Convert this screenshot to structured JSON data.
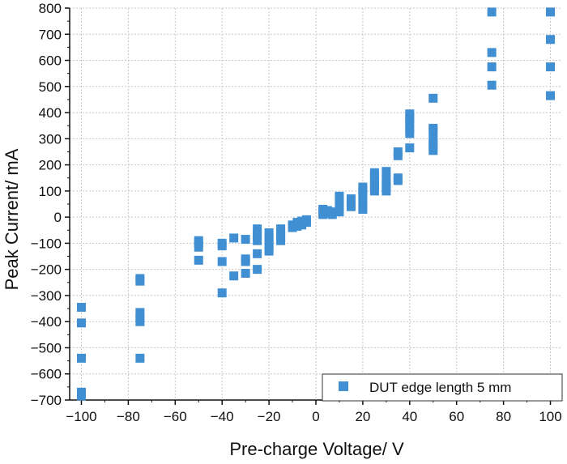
{
  "chart_data": {
    "type": "scatter",
    "title": "",
    "xlabel": "Pre-charge Voltage/ V",
    "ylabel": "Peak Current/ mA",
    "xlim": [
      -105,
      105
    ],
    "ylim": [
      -700,
      800
    ],
    "x_ticks": [
      -100,
      -80,
      -60,
      -40,
      -20,
      0,
      20,
      40,
      60,
      80,
      100
    ],
    "x_tick_labels": [
      "−100",
      "−80",
      "−60",
      "−40",
      "−20",
      "0",
      "20",
      "40",
      "60",
      "80",
      "100"
    ],
    "y_ticks": [
      -700,
      -600,
      -500,
      -400,
      -300,
      -200,
      -100,
      0,
      100,
      200,
      300,
      400,
      500,
      600,
      700,
      800
    ],
    "y_tick_labels": [
      "−700",
      "−600",
      "−500",
      "−400",
      "−300",
      "−200",
      "−100",
      "0",
      "100",
      "200",
      "300",
      "400",
      "500",
      "600",
      "700",
      "800"
    ],
    "grid": true,
    "legend_position": "bottom-right",
    "series": [
      {
        "name": "DUT edge length 5 mm",
        "color": "#3f8fd2",
        "marker": "square",
        "points": [
          [
            -100,
            -345
          ],
          [
            -100,
            -405
          ],
          [
            -100,
            -540
          ],
          [
            -100,
            -670
          ],
          [
            -100,
            -685
          ],
          [
            -75,
            -235
          ],
          [
            -75,
            -245
          ],
          [
            -75,
            -365
          ],
          [
            -75,
            -385
          ],
          [
            -75,
            -400
          ],
          [
            -75,
            -540
          ],
          [
            -50,
            -90
          ],
          [
            -50,
            -100
          ],
          [
            -50,
            -115
          ],
          [
            -50,
            -165
          ],
          [
            -40,
            -100
          ],
          [
            -40,
            -110
          ],
          [
            -40,
            -170
          ],
          [
            -40,
            -290
          ],
          [
            -35,
            -80
          ],
          [
            -35,
            -225
          ],
          [
            -30,
            -85
          ],
          [
            -30,
            -160
          ],
          [
            -30,
            -170
          ],
          [
            -30,
            -215
          ],
          [
            -25,
            -45
          ],
          [
            -25,
            -60
          ],
          [
            -25,
            -75
          ],
          [
            -25,
            -90
          ],
          [
            -25,
            -140
          ],
          [
            -25,
            -200
          ],
          [
            -20,
            -60
          ],
          [
            -20,
            -80
          ],
          [
            -20,
            -90
          ],
          [
            -20,
            -100
          ],
          [
            -20,
            -115
          ],
          [
            -20,
            -130
          ],
          [
            -15,
            -45
          ],
          [
            -15,
            -60
          ],
          [
            -15,
            -75
          ],
          [
            -15,
            -90
          ],
          [
            -10,
            -30
          ],
          [
            -10,
            -40
          ],
          [
            -8,
            -20
          ],
          [
            -8,
            -35
          ],
          [
            -6,
            -15
          ],
          [
            -6,
            -30
          ],
          [
            -4,
            -10
          ],
          [
            -4,
            -20
          ],
          [
            3,
            10
          ],
          [
            3,
            20
          ],
          [
            3,
            30
          ],
          [
            5,
            15
          ],
          [
            5,
            25
          ],
          [
            7,
            10
          ],
          [
            7,
            20
          ],
          [
            10,
            20
          ],
          [
            10,
            35
          ],
          [
            10,
            50
          ],
          [
            10,
            65
          ],
          [
            10,
            80
          ],
          [
            15,
            40
          ],
          [
            15,
            55
          ],
          [
            15,
            70
          ],
          [
            20,
            30
          ],
          [
            20,
            45
          ],
          [
            20,
            75
          ],
          [
            20,
            90
          ],
          [
            20,
            105
          ],
          [
            20,
            115
          ],
          [
            25,
            100
          ],
          [
            25,
            115
          ],
          [
            25,
            125
          ],
          [
            25,
            140
          ],
          [
            25,
            160
          ],
          [
            25,
            170
          ],
          [
            30,
            100
          ],
          [
            30,
            115
          ],
          [
            30,
            130
          ],
          [
            30,
            145
          ],
          [
            30,
            175
          ],
          [
            35,
            140
          ],
          [
            35,
            150
          ],
          [
            35,
            235
          ],
          [
            35,
            250
          ],
          [
            40,
            265
          ],
          [
            40,
            320
          ],
          [
            40,
            340
          ],
          [
            40,
            360
          ],
          [
            40,
            380
          ],
          [
            40,
            395
          ],
          [
            50,
            255
          ],
          [
            50,
            270
          ],
          [
            50,
            285
          ],
          [
            50,
            300
          ],
          [
            50,
            330
          ],
          [
            50,
            340
          ],
          [
            50,
            455
          ],
          [
            75,
            505
          ],
          [
            75,
            575
          ],
          [
            75,
            630
          ],
          [
            75,
            785
          ],
          [
            100,
            465
          ],
          [
            100,
            575
          ],
          [
            100,
            680
          ],
          [
            100,
            785
          ]
        ]
      }
    ]
  }
}
